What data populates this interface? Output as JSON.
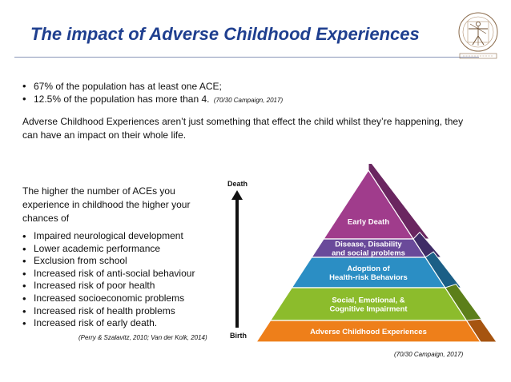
{
  "title": "The impact of Adverse Childhood Experiences",
  "logo": {
    "icon": "vitruvian-man-seal-icon",
    "text_top": "REVIVED CHILDHOOD",
    "text_bottom": "RESILIENCE"
  },
  "top_bullets": [
    {
      "text": "67% of the population has at least one ACE;",
      "cite": ""
    },
    {
      "text": "12.5%  of the population has more than 4.",
      "cite": "(70/30 Campaign, 2017)"
    }
  ],
  "paragraph": "Adverse Childhood Experiences aren’t just something that effect the child whilst they’re happening, they can have an impact on their whole life.",
  "intro": "The higher the number of ACEs you experience in childhood the higher your chances of",
  "risk_list": [
    "Impaired neurological development",
    "Lower academic performance",
    "Exclusion from school",
    "Increased risk of anti-social behaviour",
    "Increased risk of poor health",
    "Increased socioeconomic  problems",
    "Increased risk of health problems",
    "Increased risk of early death."
  ],
  "list_citation": "(Perry & Szalavitz, 2010; Van der Kolk, 2014)",
  "axis": {
    "top": "Death",
    "bottom": "Birth"
  },
  "pyramid": {
    "levels": [
      {
        "lines": [
          "Early Death"
        ],
        "color": "#a03c8c",
        "side": "#6a2660"
      },
      {
        "lines": [
          "Disease, Disability",
          "and social problems"
        ],
        "color": "#6a4a9a",
        "side": "#3f2c66"
      },
      {
        "lines": [
          "Adoption of",
          "Health-risk Behaviors"
        ],
        "color": "#2b8ec4",
        "side": "#1b5f86"
      },
      {
        "lines": [
          "Social, Emotional, &",
          "Cognitive Impairment"
        ],
        "color": "#8cbc2c",
        "side": "#5c7f1a"
      },
      {
        "lines": [
          "Adverse Childhood Experiences"
        ],
        "color": "#ee7f1a",
        "side": "#a65410"
      }
    ]
  },
  "pyramid_citation": "(70/30 Campaign, 2017)"
}
